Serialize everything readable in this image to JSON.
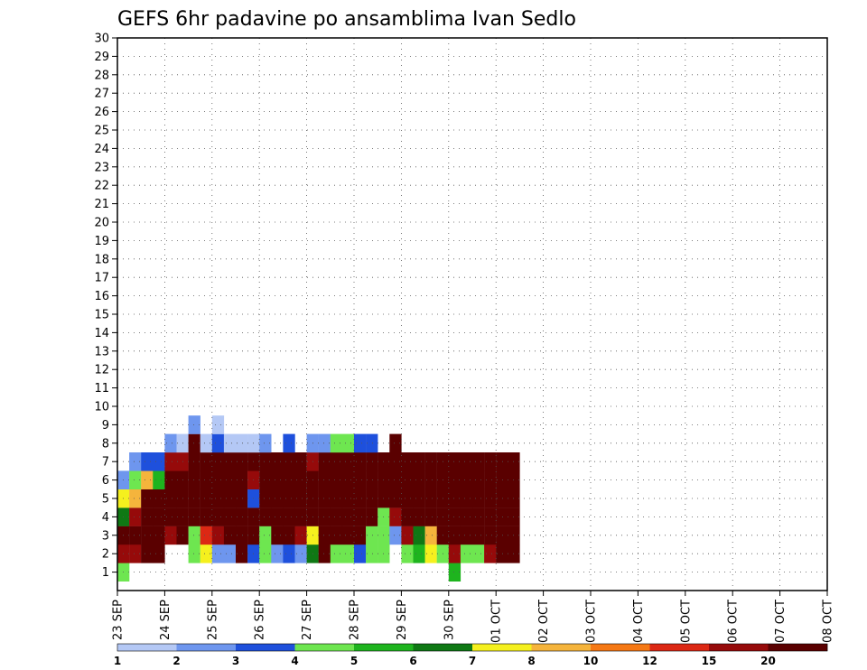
{
  "chart_data": {
    "type": "heatmap",
    "title": "GEFS 6hr padavine po ansamblima Ivan Sedlo",
    "xlabel": "",
    "ylabel": "",
    "x_tick_labels": [
      "23 SEP",
      "24 SEP",
      "25 SEP",
      "26 SEP",
      "27 SEP",
      "28 SEP",
      "29 SEP",
      "30 SEP",
      "01 OCT",
      "02 OCT",
      "03 OCT",
      "04 OCT",
      "05 OCT",
      "06 OCT",
      "07 OCT",
      "08 OCT"
    ],
    "y_tick_labels": [
      "1",
      "2",
      "3",
      "4",
      "5",
      "6",
      "7",
      "8",
      "9",
      "10",
      "11",
      "12",
      "13",
      "14",
      "15",
      "16",
      "17",
      "18",
      "19",
      "20",
      "21",
      "22",
      "23",
      "24",
      "25",
      "26",
      "27",
      "28",
      "29",
      "30"
    ],
    "x_step_hours": 6,
    "grid": true,
    "colorbar": {
      "colors": [
        "#b4c8f5",
        "#6e96ee",
        "#1e50dc",
        "#6ee650",
        "#1eb41e",
        "#0f7814",
        "#f5f01e",
        "#f5b43c",
        "#f57814",
        "#dc2814",
        "#960a0a",
        "#5a0000"
      ],
      "tick_labels": [
        "1",
        "2",
        "3",
        "4",
        "5",
        "6",
        "7",
        "8",
        "10",
        "12",
        "15",
        "20"
      ]
    },
    "cells": [
      [
        0,
        1,
        3
      ],
      [
        0,
        2,
        10
      ],
      [
        0,
        3,
        11
      ],
      [
        0,
        4,
        5
      ],
      [
        0,
        5,
        6
      ],
      [
        0,
        6,
        1
      ],
      [
        1,
        2,
        10
      ],
      [
        1,
        3,
        11
      ],
      [
        1,
        4,
        10
      ],
      [
        1,
        5,
        7
      ],
      [
        1,
        6,
        3
      ],
      [
        1,
        7,
        1
      ],
      [
        2,
        2,
        11
      ],
      [
        2,
        3,
        11
      ],
      [
        2,
        4,
        11
      ],
      [
        2,
        5,
        11
      ],
      [
        2,
        6,
        7
      ],
      [
        2,
        7,
        2
      ],
      [
        3,
        2,
        11
      ],
      [
        3,
        3,
        11
      ],
      [
        3,
        4,
        11
      ],
      [
        3,
        5,
        11
      ],
      [
        3,
        6,
        4
      ],
      [
        3,
        7,
        2
      ],
      [
        4,
        3,
        10
      ],
      [
        4,
        4,
        11
      ],
      [
        4,
        5,
        11
      ],
      [
        4,
        6,
        11
      ],
      [
        4,
        7,
        10
      ],
      [
        4,
        8,
        1
      ],
      [
        5,
        3,
        11
      ],
      [
        5,
        4,
        11
      ],
      [
        5,
        5,
        11
      ],
      [
        5,
        6,
        11
      ],
      [
        5,
        7,
        10
      ],
      [
        5,
        8,
        0
      ],
      [
        6,
        2,
        3
      ],
      [
        6,
        3,
        3
      ],
      [
        6,
        4,
        11
      ],
      [
        6,
        5,
        11
      ],
      [
        6,
        6,
        11
      ],
      [
        6,
        7,
        11
      ],
      [
        6,
        8,
        11
      ],
      [
        6,
        9,
        1
      ],
      [
        7,
        2,
        6
      ],
      [
        7,
        3,
        9
      ],
      [
        7,
        4,
        11
      ],
      [
        7,
        5,
        11
      ],
      [
        7,
        6,
        11
      ],
      [
        7,
        7,
        11
      ],
      [
        7,
        8,
        0
      ],
      [
        8,
        2,
        1
      ],
      [
        8,
        3,
        10
      ],
      [
        8,
        4,
        11
      ],
      [
        8,
        5,
        11
      ],
      [
        8,
        6,
        11
      ],
      [
        8,
        7,
        11
      ],
      [
        8,
        8,
        2
      ],
      [
        8,
        9,
        0
      ],
      [
        9,
        2,
        1
      ],
      [
        9,
        3,
        11
      ],
      [
        9,
        4,
        11
      ],
      [
        9,
        5,
        11
      ],
      [
        9,
        6,
        11
      ],
      [
        9,
        7,
        11
      ],
      [
        9,
        8,
        0
      ],
      [
        10,
        2,
        11
      ],
      [
        10,
        3,
        11
      ],
      [
        10,
        4,
        11
      ],
      [
        10,
        5,
        11
      ],
      [
        10,
        6,
        11
      ],
      [
        10,
        7,
        11
      ],
      [
        10,
        8,
        0
      ],
      [
        11,
        2,
        2
      ],
      [
        11,
        3,
        11
      ],
      [
        11,
        4,
        11
      ],
      [
        11,
        5,
        2
      ],
      [
        11,
        6,
        10
      ],
      [
        11,
        7,
        11
      ],
      [
        11,
        8,
        0
      ],
      [
        12,
        2,
        3
      ],
      [
        12,
        3,
        3
      ],
      [
        12,
        4,
        11
      ],
      [
        12,
        5,
        11
      ],
      [
        12,
        6,
        11
      ],
      [
        12,
        7,
        11
      ],
      [
        12,
        8,
        1
      ],
      [
        13,
        2,
        1
      ],
      [
        13,
        3,
        11
      ],
      [
        13,
        4,
        11
      ],
      [
        13,
        5,
        11
      ],
      [
        13,
        6,
        11
      ],
      [
        13,
        7,
        11
      ],
      [
        14,
        2,
        2
      ],
      [
        14,
        3,
        11
      ],
      [
        14,
        4,
        11
      ],
      [
        14,
        5,
        11
      ],
      [
        14,
        6,
        11
      ],
      [
        14,
        7,
        11
      ],
      [
        14,
        8,
        2
      ],
      [
        15,
        2,
        1
      ],
      [
        15,
        3,
        10
      ],
      [
        15,
        4,
        11
      ],
      [
        15,
        5,
        11
      ],
      [
        15,
        6,
        11
      ],
      [
        15,
        7,
        11
      ],
      [
        16,
        2,
        5
      ],
      [
        16,
        3,
        6
      ],
      [
        16,
        4,
        11
      ],
      [
        16,
        5,
        11
      ],
      [
        16,
        6,
        11
      ],
      [
        16,
        7,
        10
      ],
      [
        16,
        8,
        1
      ],
      [
        17,
        2,
        11
      ],
      [
        17,
        3,
        11
      ],
      [
        17,
        4,
        11
      ],
      [
        17,
        5,
        11
      ],
      [
        17,
        6,
        11
      ],
      [
        17,
        7,
        11
      ],
      [
        17,
        8,
        1
      ],
      [
        18,
        2,
        3
      ],
      [
        18,
        3,
        11
      ],
      [
        18,
        4,
        11
      ],
      [
        18,
        5,
        11
      ],
      [
        18,
        6,
        11
      ],
      [
        18,
        7,
        11
      ],
      [
        18,
        8,
        3
      ],
      [
        19,
        2,
        3
      ],
      [
        19,
        3,
        11
      ],
      [
        19,
        4,
        11
      ],
      [
        19,
        5,
        11
      ],
      [
        19,
        6,
        11
      ],
      [
        19,
        7,
        11
      ],
      [
        19,
        8,
        3
      ],
      [
        20,
        2,
        2
      ],
      [
        20,
        3,
        11
      ],
      [
        20,
        4,
        11
      ],
      [
        20,
        5,
        11
      ],
      [
        20,
        6,
        11
      ],
      [
        20,
        7,
        11
      ],
      [
        20,
        8,
        2
      ],
      [
        21,
        2,
        3
      ],
      [
        21,
        3,
        3
      ],
      [
        21,
        4,
        11
      ],
      [
        21,
        5,
        11
      ],
      [
        21,
        6,
        11
      ],
      [
        21,
        7,
        11
      ],
      [
        21,
        8,
        2
      ],
      [
        22,
        2,
        3
      ],
      [
        22,
        3,
        3
      ],
      [
        22,
        4,
        3
      ],
      [
        22,
        5,
        11
      ],
      [
        22,
        6,
        11
      ],
      [
        22,
        7,
        11
      ],
      [
        23,
        3,
        1
      ],
      [
        23,
        4,
        10
      ],
      [
        23,
        5,
        11
      ],
      [
        23,
        6,
        11
      ],
      [
        23,
        7,
        11
      ],
      [
        23,
        8,
        11
      ],
      [
        24,
        2,
        3
      ],
      [
        24,
        3,
        10
      ],
      [
        24,
        4,
        11
      ],
      [
        24,
        5,
        11
      ],
      [
        24,
        6,
        11
      ],
      [
        24,
        7,
        11
      ],
      [
        25,
        2,
        4
      ],
      [
        25,
        3,
        5
      ],
      [
        25,
        4,
        11
      ],
      [
        25,
        5,
        11
      ],
      [
        25,
        6,
        11
      ],
      [
        25,
        7,
        11
      ],
      [
        26,
        2,
        6
      ],
      [
        26,
        3,
        7
      ],
      [
        26,
        4,
        11
      ],
      [
        26,
        5,
        11
      ],
      [
        26,
        6,
        11
      ],
      [
        26,
        7,
        11
      ],
      [
        27,
        2,
        3
      ],
      [
        27,
        3,
        11
      ],
      [
        27,
        4,
        11
      ],
      [
        27,
        5,
        11
      ],
      [
        27,
        6,
        11
      ],
      [
        27,
        7,
        11
      ],
      [
        28,
        1,
        4
      ],
      [
        28,
        2,
        10
      ],
      [
        28,
        3,
        11
      ],
      [
        28,
        4,
        11
      ],
      [
        28,
        5,
        11
      ],
      [
        28,
        6,
        11
      ],
      [
        28,
        7,
        11
      ],
      [
        29,
        2,
        3
      ],
      [
        29,
        3,
        11
      ],
      [
        29,
        4,
        11
      ],
      [
        29,
        5,
        11
      ],
      [
        29,
        6,
        11
      ],
      [
        29,
        7,
        11
      ],
      [
        30,
        2,
        3
      ],
      [
        30,
        3,
        11
      ],
      [
        30,
        4,
        11
      ],
      [
        30,
        5,
        11
      ],
      [
        30,
        6,
        11
      ],
      [
        30,
        7,
        11
      ],
      [
        31,
        2,
        10
      ],
      [
        31,
        3,
        11
      ],
      [
        31,
        4,
        11
      ],
      [
        31,
        5,
        11
      ],
      [
        31,
        6,
        11
      ],
      [
        31,
        7,
        11
      ],
      [
        32,
        2,
        11
      ],
      [
        32,
        3,
        11
      ],
      [
        32,
        4,
        11
      ],
      [
        32,
        5,
        11
      ],
      [
        32,
        6,
        11
      ],
      [
        32,
        7,
        11
      ],
      [
        33,
        2,
        11
      ],
      [
        33,
        3,
        11
      ],
      [
        33,
        4,
        11
      ],
      [
        33,
        5,
        11
      ],
      [
        33,
        6,
        11
      ],
      [
        33,
        7,
        11
      ]
    ]
  }
}
